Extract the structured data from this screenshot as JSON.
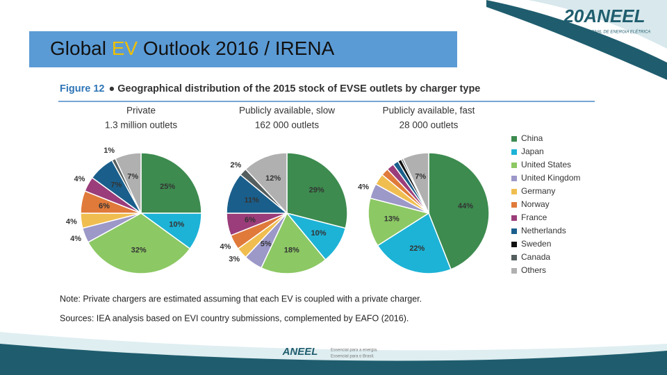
{
  "slide_title": [
    "Global ",
    "EV",
    " Outlook 2016 / IRENA"
  ],
  "logo": {
    "top": "20ANEEL",
    "top_sub": "AGÊNCIA NACIONAL DE ENERGIA ELÉTRICA",
    "bottom": "ANEEL",
    "bottom_sub": [
      "Essencial para a energia.",
      "Essencial para o Brasil."
    ]
  },
  "figure": {
    "label": "Figure 12",
    "caption": "● Geographical distribution of the 2015 stock of EVSE outlets by charger type"
  },
  "note": "Note: Private chargers are estimated assuming that each EV is coupled with a private charger.",
  "sources": "Sources: IEA analysis based on EVI country submissions, complemented by EAFO (2016).",
  "chart_data": {
    "type": "pie",
    "categories": [
      "China",
      "Japan",
      "United States",
      "United Kingdom",
      "Germany",
      "Norway",
      "France",
      "Netherlands",
      "Sweden",
      "Canada",
      "Others"
    ],
    "colors": [
      "#3d8b4f",
      "#1db3d6",
      "#8cc864",
      "#9c98c8",
      "#f0be50",
      "#e07a3a",
      "#9b3d7a",
      "#1a5f8c",
      "#111111",
      "#555e5e",
      "#b0b0b0"
    ],
    "pies": [
      {
        "title": "Private",
        "subtitle": "1.3 million outlets",
        "values": [
          25,
          10,
          32,
          4,
          4,
          6,
          4,
          7,
          null,
          1,
          7
        ],
        "value_labels": [
          "25%",
          "10%",
          "32%",
          "4%",
          "4%",
          "6%",
          "4%",
          "7%",
          null,
          "1%",
          "7%"
        ]
      },
      {
        "title": "Publicly available, slow",
        "subtitle": "162 000 outlets",
        "values": [
          29,
          10,
          18,
          5,
          3,
          4,
          6,
          11,
          null,
          2,
          12
        ],
        "value_labels": [
          "29%",
          "10%",
          "18%",
          "5%",
          "3%",
          "4%",
          "6%",
          "11%",
          null,
          "2%",
          "12%"
        ]
      },
      {
        "title": "Publicly available, fast",
        "subtitle": "28 000 outlets",
        "values": [
          44,
          22,
          13,
          4,
          3,
          2,
          2,
          1.5,
          1,
          0.5,
          7
        ],
        "value_labels": [
          "44%",
          "22%",
          "13%",
          "4%",
          null,
          null,
          null,
          null,
          null,
          null,
          "7%"
        ]
      }
    ]
  }
}
